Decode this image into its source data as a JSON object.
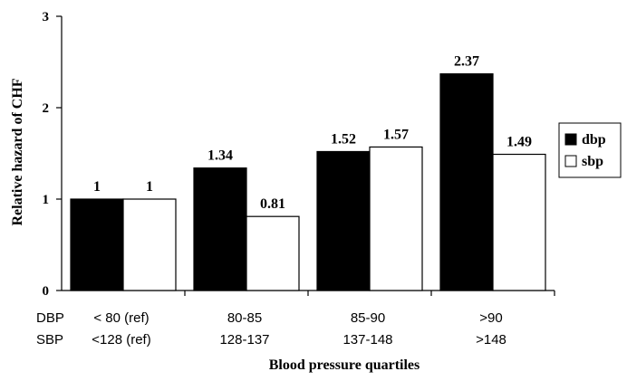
{
  "chart_data": {
    "type": "bar",
    "title": "",
    "xlabel": "Blood pressure quartiles",
    "ylabel": "Relative hazard of CHF",
    "ylim": [
      0,
      3
    ],
    "yticks": [
      0,
      1,
      2,
      3
    ],
    "grid": false,
    "legend_position": "right",
    "row_labels": [
      "DBP",
      "SBP"
    ],
    "categories": [
      {
        "dbp": "< 80 (ref)",
        "sbp": "<128 (ref)"
      },
      {
        "dbp": "80-85",
        "sbp": "128-137"
      },
      {
        "dbp": "85-90",
        "sbp": "137-148"
      },
      {
        "dbp": ">90",
        "sbp": ">148"
      }
    ],
    "series": [
      {
        "name": "dbp",
        "color": "#000000",
        "values": [
          1,
          1.34,
          1.52,
          2.37
        ],
        "labels": [
          "1",
          "1.34",
          "1.52",
          "2.37"
        ]
      },
      {
        "name": "sbp",
        "color": "#ffffff",
        "values": [
          1,
          0.81,
          1.57,
          1.49
        ],
        "labels": [
          "1",
          "0.81",
          "1.57",
          "1.49"
        ]
      }
    ]
  }
}
